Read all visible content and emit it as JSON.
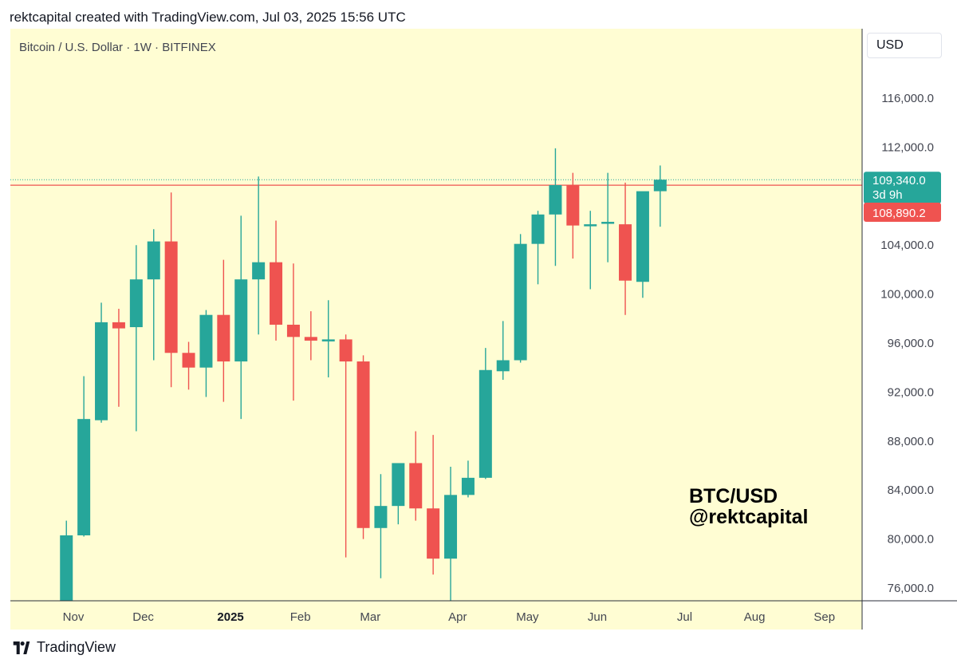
{
  "header": {
    "text": "rektcapital created with TradingView.com, Jul 03, 2025 15:56 UTC"
  },
  "chart": {
    "title": "Bitcoin / U.S. Dollar · 1W · BITFINEX",
    "currency": "USD",
    "watermark_line1": "BTC/USD",
    "watermark_line2": "@rektcapital",
    "background": "#fffdd3",
    "up_color": "#26a69a",
    "down_color": "#ef5350",
    "current_price_label": "109,340.0",
    "countdown_label": "3d 9h",
    "resistance_label": "108,890.2"
  },
  "chart_data": {
    "type": "candlestick",
    "title": "Bitcoin / U.S. Dollar · 1W · BITFINEX",
    "interval": "1W",
    "ylim": [
      74500,
      119500
    ],
    "y_ticks": [
      {
        "value": 116000,
        "label": "116,000.0"
      },
      {
        "value": 112000,
        "label": "112,000.0"
      },
      {
        "value": 104000,
        "label": "104,000.0"
      },
      {
        "value": 100000,
        "label": "100,000.0"
      },
      {
        "value": 96000,
        "label": "96,000.0"
      },
      {
        "value": 92000,
        "label": "92,000.0"
      },
      {
        "value": 88000,
        "label": "88,000.0"
      },
      {
        "value": 84000,
        "label": "84,000.0"
      },
      {
        "value": 80000,
        "label": "80,000.0"
      },
      {
        "value": 76000,
        "label": "76,000.0"
      }
    ],
    "x_ticks": [
      {
        "label": "Nov",
        "week": 0,
        "bold": false
      },
      {
        "label": "Dec",
        "week": 4,
        "bold": false
      },
      {
        "label": "2025",
        "week": 9,
        "bold": true
      },
      {
        "label": "Feb",
        "week": 13,
        "bold": false
      },
      {
        "label": "Mar",
        "week": 17,
        "bold": false
      },
      {
        "label": "Apr",
        "week": 22,
        "bold": false
      },
      {
        "label": "May",
        "week": 26,
        "bold": false
      },
      {
        "label": "Jun",
        "week": 30,
        "bold": false
      },
      {
        "label": "Jul",
        "week": 35,
        "bold": false
      },
      {
        "label": "Aug",
        "week": 39,
        "bold": false
      },
      {
        "label": "Sep",
        "week": 43,
        "bold": false
      }
    ],
    "first_week_offset": -0.4,
    "candles": [
      {
        "o": 74500,
        "h": 81500,
        "l": 74500,
        "c": 80300
      },
      {
        "o": 80300,
        "h": 93300,
        "l": 80200,
        "c": 89800
      },
      {
        "o": 89700,
        "h": 99300,
        "l": 89500,
        "c": 97700
      },
      {
        "o": 97700,
        "h": 98800,
        "l": 90800,
        "c": 97200
      },
      {
        "o": 97300,
        "h": 104000,
        "l": 88800,
        "c": 101200
      },
      {
        "o": 101200,
        "h": 105300,
        "l": 94600,
        "c": 104300
      },
      {
        "o": 104300,
        "h": 108300,
        "l": 92400,
        "c": 95200
      },
      {
        "o": 95200,
        "h": 96100,
        "l": 92200,
        "c": 94000
      },
      {
        "o": 94000,
        "h": 98700,
        "l": 91600,
        "c": 98300
      },
      {
        "o": 98300,
        "h": 102800,
        "l": 91200,
        "c": 94500
      },
      {
        "o": 94500,
        "h": 106400,
        "l": 89800,
        "c": 101200
      },
      {
        "o": 101200,
        "h": 109600,
        "l": 96700,
        "c": 102600
      },
      {
        "o": 102600,
        "h": 106000,
        "l": 96200,
        "c": 97500
      },
      {
        "o": 97500,
        "h": 102500,
        "l": 91300,
        "c": 96500
      },
      {
        "o": 96500,
        "h": 98600,
        "l": 94600,
        "c": 96200
      },
      {
        "o": 96200,
        "h": 99500,
        "l": 93200,
        "c": 96300
      },
      {
        "o": 96300,
        "h": 96700,
        "l": 78500,
        "c": 94500
      },
      {
        "o": 94500,
        "h": 95000,
        "l": 80000,
        "c": 80900
      },
      {
        "o": 80900,
        "h": 85300,
        "l": 76800,
        "c": 82700
      },
      {
        "o": 82700,
        "h": 86100,
        "l": 81200,
        "c": 86200
      },
      {
        "o": 86200,
        "h": 88800,
        "l": 81500,
        "c": 82500
      },
      {
        "o": 82500,
        "h": 88500,
        "l": 77100,
        "c": 78400
      },
      {
        "o": 78400,
        "h": 85900,
        "l": 74500,
        "c": 83600
      },
      {
        "o": 83600,
        "h": 86400,
        "l": 83400,
        "c": 85000
      },
      {
        "o": 85000,
        "h": 95600,
        "l": 84900,
        "c": 93800
      },
      {
        "o": 93700,
        "h": 97800,
        "l": 93000,
        "c": 94600
      },
      {
        "o": 94600,
        "h": 104900,
        "l": 94400,
        "c": 104100
      },
      {
        "o": 104100,
        "h": 106800,
        "l": 100800,
        "c": 106500
      },
      {
        "o": 106500,
        "h": 111900,
        "l": 102300,
        "c": 108900
      },
      {
        "o": 108900,
        "h": 109900,
        "l": 102900,
        "c": 105600
      },
      {
        "o": 105600,
        "h": 106800,
        "l": 100400,
        "c": 105700
      },
      {
        "o": 105800,
        "h": 109900,
        "l": 102600,
        "c": 105900
      },
      {
        "o": 105700,
        "h": 109100,
        "l": 98300,
        "c": 101100
      },
      {
        "o": 101000,
        "h": 108300,
        "l": 99700,
        "c": 108400
      },
      {
        "o": 108400,
        "h": 110500,
        "l": 105500,
        "c": 109340
      }
    ],
    "horizontal_lines": [
      {
        "price": 108890.2,
        "style": "solid",
        "color": "#ef5350",
        "label": "108,890.2"
      },
      {
        "price": 109340.0,
        "style": "dotted",
        "color": "#26a69a",
        "label": "109,340.0"
      }
    ],
    "grid": false
  },
  "footer": {
    "brand": "TradingView"
  }
}
